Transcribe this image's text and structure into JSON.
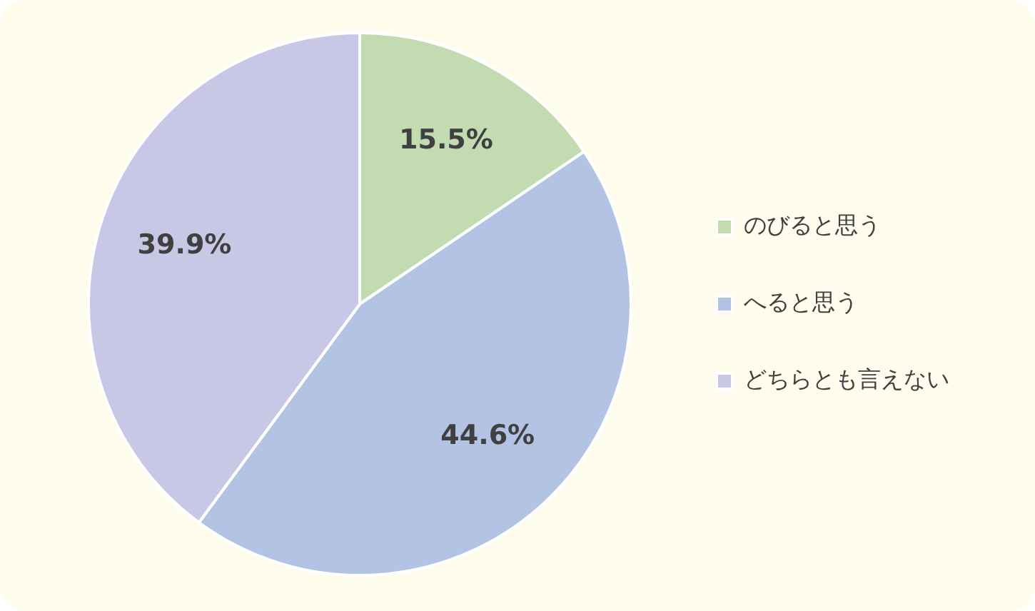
{
  "chart_data": {
    "type": "pie",
    "categories": [
      "のびると思う",
      "へると思う",
      "どちらとも言えない"
    ],
    "values": [
      15.5,
      44.6,
      39.9
    ],
    "colors": [
      "#c3dbb0",
      "#b2c3e3",
      "#c8c8e6"
    ],
    "value_labels": [
      "15.5%",
      "44.6%",
      "39.9%"
    ],
    "legend": "right"
  }
}
